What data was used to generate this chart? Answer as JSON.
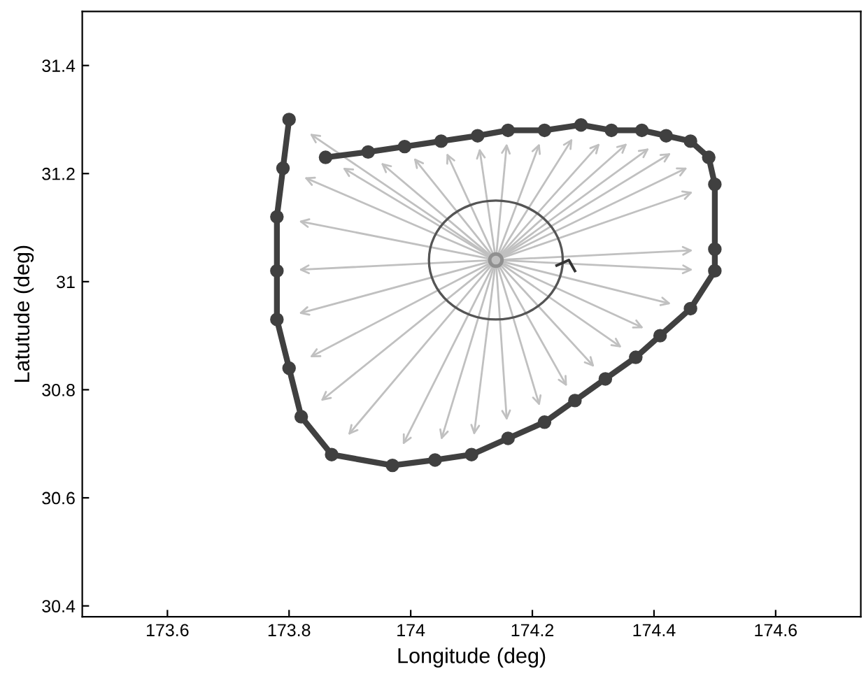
{
  "chart_data": {
    "type": "line",
    "xlabel": "Longitude (deg)",
    "ylabel": "Latutude (deg)",
    "xlim": [
      173.46,
      174.74
    ],
    "ylim": [
      30.38,
      31.5
    ],
    "xticks": [
      173.6,
      173.8,
      174,
      174.2,
      174.4,
      174.6
    ],
    "yticks": [
      30.4,
      30.6,
      30.8,
      31,
      31.2,
      31.4
    ],
    "grid": false,
    "legend": false,
    "series": [
      {
        "type": "scatter",
        "color": "#909090",
        "marker": "circle",
        "x": [
          174.14
        ],
        "values": [
          31.04
        ]
      },
      {
        "color": "#333333",
        "marker": "none",
        "x": [
          174.24,
          174.26,
          174.27
        ],
        "values": [
          31.03,
          31.04,
          31.02
        ]
      },
      {
        "color": "#404040",
        "marker": "circle",
        "x": [
          173.8,
          173.79,
          173.78,
          173.78,
          173.78,
          173.8,
          173.82,
          173.87,
          173.97,
          174.04,
          174.1,
          174.16,
          174.22,
          174.27,
          174.32,
          174.37,
          174.41,
          174.46,
          174.5,
          174.5,
          174.5,
          174.49,
          174.46,
          174.42,
          174.38,
          174.33,
          174.28,
          174.22,
          174.16,
          174.11,
          174.05,
          173.99,
          173.93,
          173.86
        ],
        "values": [
          31.3,
          31.21,
          31.12,
          31.02,
          30.93,
          30.84,
          30.75,
          30.68,
          30.66,
          30.67,
          30.68,
          30.71,
          30.74,
          30.78,
          30.82,
          30.86,
          30.9,
          30.95,
          31.02,
          31.06,
          31.18,
          31.23,
          31.26,
          31.27,
          31.28,
          31.28,
          31.29,
          31.28,
          31.28,
          31.27,
          31.26,
          31.25,
          31.24,
          31.23
        ]
      }
    ]
  }
}
